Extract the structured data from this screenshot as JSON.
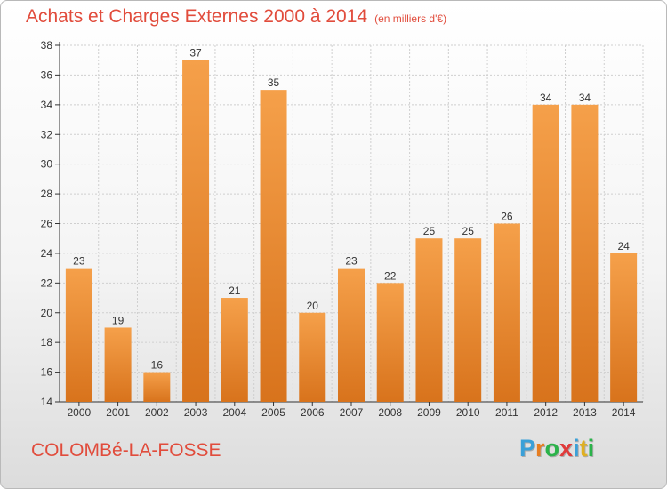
{
  "title": "Achats et Charges Externes 2000 à 2014",
  "subtitle": "(en milliers d'€)",
  "place": "COLOMBé-LA-FOSSE",
  "logo": {
    "letters": [
      "P",
      "r",
      "o",
      "x",
      "i",
      "t",
      "i"
    ],
    "colors": [
      "#3aa0d8",
      "#e67e22",
      "#2bb34a",
      "#e03a3a",
      "#3aa0d8",
      "#e0b020",
      "#2bb34a"
    ]
  },
  "chart_data": {
    "type": "bar",
    "title": "Achats et Charges Externes 2000 à 2014",
    "subtitle": "(en milliers d'€)",
    "categories": [
      "2000",
      "2001",
      "2002",
      "2003",
      "2004",
      "2005",
      "2006",
      "2007",
      "2008",
      "2009",
      "2010",
      "2011",
      "2012",
      "2013",
      "2014"
    ],
    "values": [
      23,
      19,
      16,
      37,
      21,
      35,
      20,
      23,
      22,
      25,
      25,
      26,
      34,
      34,
      24
    ],
    "ylim": [
      14,
      38
    ],
    "yticks": [
      "14",
      "16",
      "18",
      "20",
      "22",
      "24",
      "26",
      "28",
      "30",
      "32",
      "34",
      "36",
      "38"
    ],
    "grid": true,
    "bar_color": "#f5a04a",
    "bar_color_dark": "#d8731c"
  }
}
